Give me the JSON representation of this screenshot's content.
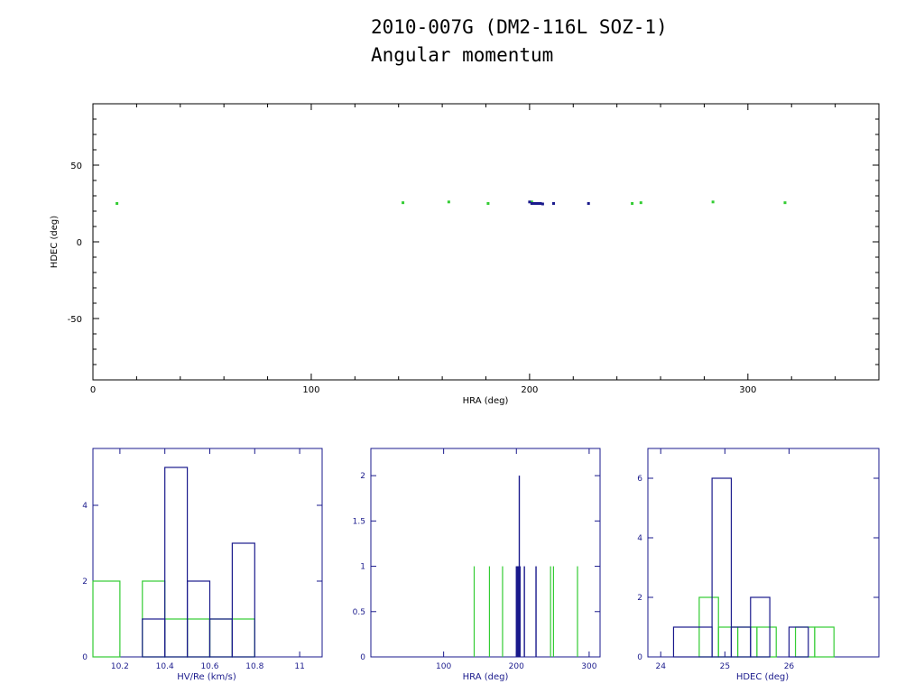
{
  "header": {
    "title_line1": "2010-007G (DM2-116L SOZ-1)",
    "title_line2": "Angular momentum"
  },
  "colors": {
    "navy": "#1a1a8c",
    "green": "#33cc33",
    "black": "#000000"
  },
  "chart_data": [
    {
      "id": "scatter",
      "type": "scatter",
      "xlabel": "HRA (deg)",
      "ylabel": "HDEC (deg)",
      "xlim": [
        0,
        360
      ],
      "ylim": [
        -90,
        90
      ],
      "xticks": [
        0,
        100,
        200,
        300
      ],
      "yticks": [
        -50,
        0,
        50
      ],
      "series": [
        {
          "color": "green",
          "points": [
            [
              11,
              25
            ],
            [
              142,
              25.5
            ],
            [
              163,
              26
            ],
            [
              181,
              25
            ],
            [
              201,
              26
            ],
            [
              247,
              25
            ],
            [
              251,
              25.5
            ],
            [
              284,
              26
            ],
            [
              317,
              25.5
            ]
          ]
        },
        {
          "color": "navy",
          "points": [
            [
              200,
              26
            ],
            [
              201,
              25
            ],
            [
              202,
              25
            ],
            [
              203,
              25
            ],
            [
              204,
              25
            ],
            [
              205,
              25
            ],
            [
              206,
              24.7
            ],
            [
              211,
              25
            ],
            [
              227,
              25
            ]
          ]
        }
      ]
    },
    {
      "id": "hist_hv",
      "type": "bar",
      "xlabel": "HV/Re (km/s)",
      "xlim": [
        10.08,
        11.1
      ],
      "ylim": [
        0,
        5.5
      ],
      "xticks": [
        "10.2",
        "10.4",
        "10.6",
        "10.8",
        "11"
      ],
      "xtick_values": [
        10.2,
        10.4,
        10.6,
        10.8,
        11.0
      ],
      "yticks": [
        "0",
        "2",
        "4"
      ],
      "ytick_values": [
        0,
        2,
        4
      ],
      "series": [
        {
          "color": "navy",
          "bins": [
            [
              10.3,
              10.4,
              1
            ],
            [
              10.4,
              10.5,
              5
            ],
            [
              10.5,
              10.6,
              2
            ],
            [
              10.6,
              10.7,
              1
            ],
            [
              10.7,
              10.8,
              3
            ]
          ]
        },
        {
          "color": "green",
          "bins": [
            [
              10.08,
              10.2,
              2
            ],
            [
              10.3,
              10.4,
              2
            ],
            [
              10.4,
              10.5,
              1
            ],
            [
              10.5,
              10.6,
              1
            ],
            [
              10.6,
              10.7,
              1
            ],
            [
              10.7,
              10.8,
              1
            ]
          ]
        }
      ]
    },
    {
      "id": "hist_hra",
      "type": "bar",
      "xlabel": "HRA (deg)",
      "xlim": [
        0,
        315
      ],
      "ylim": [
        0,
        2.3
      ],
      "xticks": [
        "100",
        "200",
        "300"
      ],
      "xtick_values": [
        100,
        200,
        300
      ],
      "yticks": [
        "0",
        "0.5",
        "1",
        "1.5",
        "2"
      ],
      "ytick_values": [
        0,
        0.5,
        1,
        1.5,
        2
      ],
      "series": [
        {
          "color": "navy",
          "spikes": [
            [
              200,
              1
            ],
            [
              201,
              1
            ],
            [
              202,
              1
            ],
            [
              203,
              1
            ],
            [
              204,
              2
            ],
            [
              205,
              1
            ],
            [
              211,
              1
            ],
            [
              227,
              1
            ]
          ]
        },
        {
          "color": "green",
          "spikes": [
            [
              142,
              1
            ],
            [
              163,
              1
            ],
            [
              181,
              1
            ],
            [
              201,
              1
            ],
            [
              247,
              1
            ],
            [
              251,
              1
            ],
            [
              284,
              1
            ]
          ]
        }
      ]
    },
    {
      "id": "hist_hdec",
      "type": "bar",
      "xlabel": "HDEC (deg)",
      "xlim": [
        23.8,
        27.4
      ],
      "ylim": [
        0,
        7
      ],
      "xticks": [
        "24",
        "25",
        "26"
      ],
      "xtick_values": [
        24,
        25,
        26
      ],
      "yticks": [
        "0",
        "2",
        "4",
        "6"
      ],
      "ytick_values": [
        0,
        2,
        4,
        6
      ],
      "series": [
        {
          "color": "navy",
          "bins": [
            [
              24.2,
              24.8,
              1
            ],
            [
              24.8,
              25.1,
              6
            ],
            [
              25.1,
              25.4,
              1
            ],
            [
              25.4,
              25.7,
              2
            ],
            [
              25.7,
              26.0,
              0
            ],
            [
              26.0,
              26.3,
              1
            ]
          ]
        },
        {
          "color": "green",
          "bins": [
            [
              24.6,
              24.9,
              2
            ],
            [
              24.9,
              25.2,
              1
            ],
            [
              25.2,
              25.5,
              1
            ],
            [
              25.5,
              25.8,
              1
            ],
            [
              25.8,
              26.1,
              0
            ],
            [
              26.1,
              26.4,
              1
            ],
            [
              26.4,
              26.7,
              1
            ]
          ]
        }
      ]
    }
  ]
}
